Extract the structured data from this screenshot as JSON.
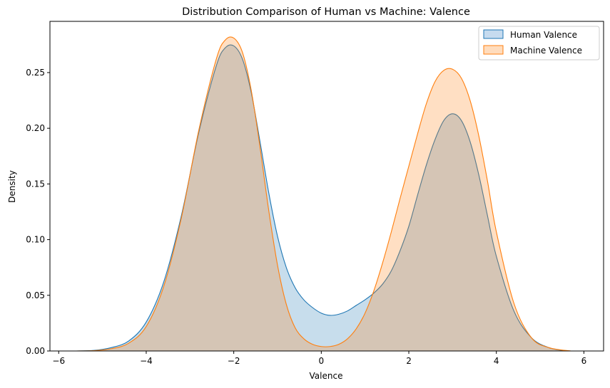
{
  "chart_data": {
    "type": "area",
    "title": "Distribution Comparison of Human vs Machine: Valence",
    "xlabel": "Valence",
    "ylabel": "Density",
    "xlim": [
      -6.2,
      6.45
    ],
    "ylim": [
      0,
      0.296
    ],
    "xticks": [
      -6,
      -4,
      -2,
      0,
      2,
      4,
      6
    ],
    "yticks": [
      0.0,
      0.05,
      0.1,
      0.15,
      0.2,
      0.25
    ],
    "ytick_labels": [
      "0.00",
      "0.05",
      "0.10",
      "0.15",
      "0.20",
      "0.25"
    ],
    "xtick_labels": [
      "−6",
      "−4",
      "−2",
      "0",
      "2",
      "4",
      "6"
    ],
    "grid": false,
    "legend_position": "top-right",
    "series": [
      {
        "name": "Human Valence",
        "line_color": "#1f77b4",
        "fill_color": "#1f77b4",
        "fill_opacity": 0.25,
        "x": [
          -5.6,
          -5.2,
          -4.8,
          -4.4,
          -4.0,
          -3.6,
          -3.2,
          -2.8,
          -2.4,
          -2.2,
          -2.0,
          -1.8,
          -1.6,
          -1.4,
          -1.2,
          -1.0,
          -0.8,
          -0.6,
          -0.4,
          -0.2,
          0.0,
          0.2,
          0.4,
          0.6,
          0.8,
          1.0,
          1.2,
          1.4,
          1.6,
          1.8,
          2.0,
          2.2,
          2.4,
          2.6,
          2.8,
          3.0,
          3.2,
          3.4,
          3.6,
          3.8,
          4.0,
          4.4,
          4.8,
          5.2,
          5.6
        ],
        "y": [
          0.0,
          0.0005,
          0.003,
          0.009,
          0.026,
          0.062,
          0.121,
          0.196,
          0.256,
          0.272,
          0.274,
          0.262,
          0.232,
          0.188,
          0.142,
          0.103,
          0.075,
          0.057,
          0.046,
          0.039,
          0.034,
          0.032,
          0.033,
          0.036,
          0.041,
          0.046,
          0.052,
          0.06,
          0.072,
          0.09,
          0.112,
          0.14,
          0.167,
          0.19,
          0.207,
          0.213,
          0.207,
          0.188,
          0.158,
          0.121,
          0.085,
          0.036,
          0.012,
          0.003,
          0.0
        ]
      },
      {
        "name": "Machine Valence",
        "line_color": "#ff7f0e",
        "fill_color": "#ff7f0e",
        "fill_opacity": 0.25,
        "x": [
          -5.6,
          -5.2,
          -4.8,
          -4.4,
          -4.0,
          -3.6,
          -3.2,
          -2.8,
          -2.4,
          -2.2,
          -2.0,
          -1.8,
          -1.6,
          -1.4,
          -1.2,
          -1.0,
          -0.8,
          -0.6,
          -0.4,
          -0.2,
          0.0,
          0.2,
          0.4,
          0.6,
          0.8,
          1.0,
          1.2,
          1.4,
          1.6,
          1.8,
          2.0,
          2.2,
          2.4,
          2.6,
          2.8,
          3.0,
          3.2,
          3.4,
          3.6,
          3.8,
          4.0,
          4.4,
          4.8,
          5.2,
          5.7
        ],
        "y": [
          0.0,
          0.0003,
          0.002,
          0.007,
          0.022,
          0.058,
          0.119,
          0.198,
          0.262,
          0.279,
          0.281,
          0.268,
          0.234,
          0.183,
          0.126,
          0.077,
          0.042,
          0.021,
          0.011,
          0.006,
          0.004,
          0.004,
          0.006,
          0.011,
          0.02,
          0.034,
          0.054,
          0.079,
          0.107,
          0.137,
          0.166,
          0.195,
          0.222,
          0.242,
          0.252,
          0.253,
          0.245,
          0.225,
          0.193,
          0.152,
          0.107,
          0.043,
          0.012,
          0.003,
          0.0
        ]
      }
    ]
  }
}
